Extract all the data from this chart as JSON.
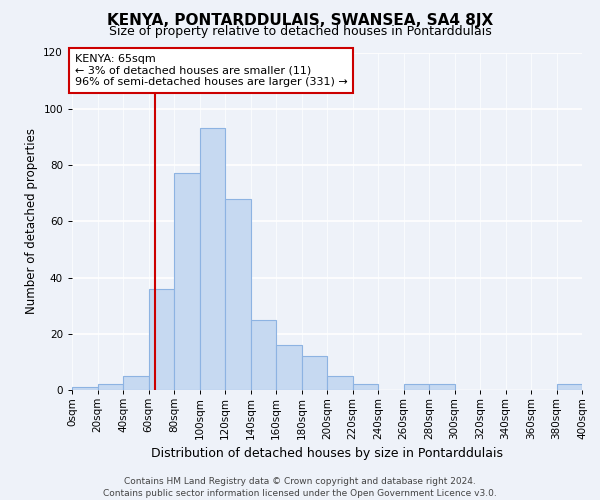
{
  "title": "KENYA, PONTARDDULAIS, SWANSEA, SA4 8JX",
  "subtitle": "Size of property relative to detached houses in Pontarddulais",
  "xlabel": "Distribution of detached houses by size in Pontarddulais",
  "ylabel": "Number of detached properties",
  "bar_edges": [
    0,
    20,
    40,
    60,
    80,
    100,
    120,
    140,
    160,
    180,
    200,
    220,
    240,
    260,
    280,
    300,
    320,
    340,
    360,
    380,
    400
  ],
  "bar_heights": [
    1,
    2,
    5,
    36,
    77,
    93,
    68,
    25,
    16,
    12,
    5,
    2,
    0,
    2,
    2,
    0,
    0,
    0,
    0,
    2
  ],
  "bar_color": "#c6d9f1",
  "bar_edge_color": "#8db3e2",
  "kenya_line_x": 65,
  "kenya_line_color": "#cc0000",
  "annotation_text": "KENYA: 65sqm\n← 3% of detached houses are smaller (11)\n96% of semi-detached houses are larger (331) →",
  "annotation_box_color": "#ffffff",
  "annotation_box_edge": "#cc0000",
  "ylim": [
    0,
    120
  ],
  "xlim": [
    0,
    400
  ],
  "yticks": [
    0,
    20,
    40,
    60,
    80,
    100,
    120
  ],
  "tick_labels": [
    "0sqm",
    "20sqm",
    "40sqm",
    "60sqm",
    "80sqm",
    "100sqm",
    "120sqm",
    "140sqm",
    "160sqm",
    "180sqm",
    "200sqm",
    "220sqm",
    "240sqm",
    "260sqm",
    "280sqm",
    "300sqm",
    "320sqm",
    "340sqm",
    "360sqm",
    "380sqm",
    "400sqm"
  ],
  "footer_text": "Contains HM Land Registry data © Crown copyright and database right 2024.\nContains public sector information licensed under the Open Government Licence v3.0.",
  "background_color": "#eef2f9",
  "grid_color": "#ffffff",
  "title_fontsize": 11,
  "subtitle_fontsize": 9,
  "xlabel_fontsize": 9,
  "ylabel_fontsize": 8.5,
  "tick_fontsize": 7.5,
  "footer_fontsize": 6.5,
  "ann_fontsize": 8
}
